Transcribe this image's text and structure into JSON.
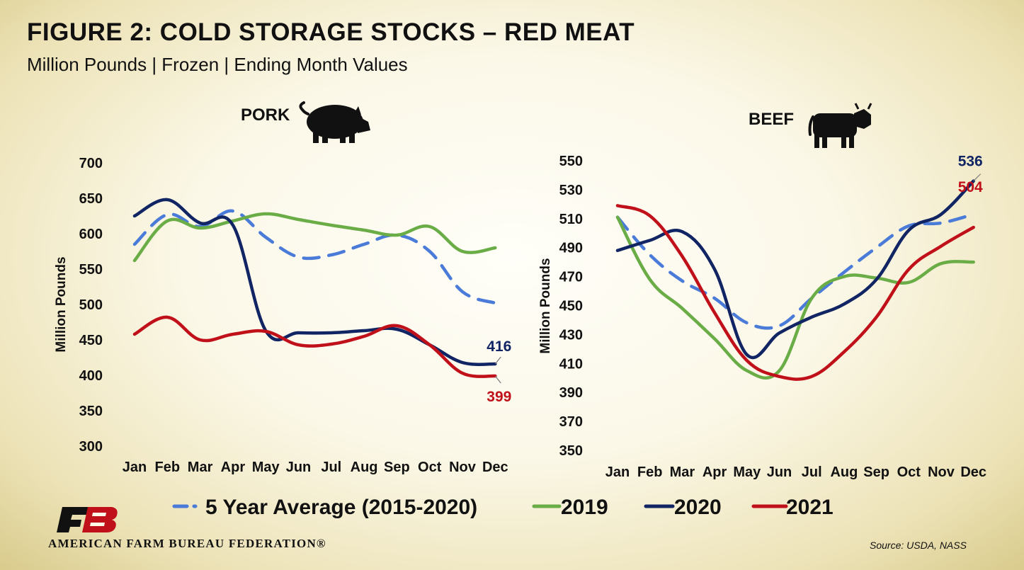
{
  "title": "FIGURE 2: COLD STORAGE STOCKS – RED MEAT",
  "subtitle": "Million Pounds | Frozen | Ending Month Values",
  "source": "Source: USDA, NASS",
  "organization": "AMERICAN FARM BUREAU FEDERATION®",
  "colors": {
    "avg": "#4a7bd8",
    "y2019": "#6aac46",
    "y2020": "#112463",
    "y2021": "#c0101a"
  },
  "legend": [
    {
      "label": "5 Year Average (2015-2020)",
      "key": "avg",
      "dashed": true
    },
    {
      "label": "2019",
      "key": "y2019",
      "dashed": false
    },
    {
      "label": "2020",
      "key": "y2020",
      "dashed": false
    },
    {
      "label": "2021",
      "key": "y2021",
      "dashed": false
    }
  ],
  "chart_data": [
    {
      "type": "line",
      "title": "PORK",
      "icon": "pig-icon",
      "ylabel": "Million Pounds",
      "ylim": [
        300,
        700
      ],
      "yticks": [
        300,
        350,
        400,
        450,
        500,
        550,
        600,
        650,
        700
      ],
      "categories": [
        "Jan",
        "Feb",
        "Mar",
        "Apr",
        "May",
        "Jun",
        "Jul",
        "Aug",
        "Sep",
        "Oct",
        "Nov",
        "Dec"
      ],
      "series": [
        {
          "name": "5 Year Average (2015-2020)",
          "key": "avg",
          "values": [
            585,
            627,
            610,
            632,
            595,
            567,
            570,
            585,
            598,
            575,
            518,
            502
          ]
        },
        {
          "name": "2019",
          "key": "y2019",
          "values": [
            562,
            618,
            608,
            618,
            628,
            620,
            612,
            605,
            598,
            610,
            575,
            580
          ]
        },
        {
          "name": "2020",
          "key": "y2020",
          "values": [
            625,
            648,
            615,
            612,
            463,
            460,
            460,
            463,
            465,
            443,
            418,
            416
          ]
        },
        {
          "name": "2021",
          "key": "y2021",
          "values": [
            458,
            482,
            450,
            458,
            462,
            443,
            444,
            455,
            470,
            443,
            403,
            399
          ]
        }
      ],
      "end_labels": [
        {
          "key": "y2020",
          "text": "416"
        },
        {
          "key": "y2021",
          "text": "399"
        }
      ]
    },
    {
      "type": "line",
      "title": "BEEF",
      "icon": "cow-icon",
      "ylabel": "Million Pounds",
      "ylim": [
        350,
        550
      ],
      "yticks": [
        350,
        370,
        390,
        410,
        430,
        450,
        470,
        490,
        510,
        530,
        550
      ],
      "categories": [
        "Jan",
        "Feb",
        "Mar",
        "Apr",
        "May",
        "Jun",
        "Jul",
        "Aug",
        "Sep",
        "Oct",
        "Nov",
        "Dec"
      ],
      "series": [
        {
          "name": "5 Year Average (2015-2020)",
          "key": "avg",
          "values": [
            511,
            485,
            467,
            455,
            438,
            436,
            455,
            473,
            490,
            505,
            507,
            513
          ]
        },
        {
          "name": "2019",
          "key": "y2019",
          "values": [
            511,
            468,
            448,
            427,
            405,
            405,
            455,
            470,
            469,
            466,
            479,
            480
          ]
        },
        {
          "name": "2020",
          "key": "y2020",
          "values": [
            488,
            495,
            501,
            475,
            416,
            431,
            442,
            451,
            468,
            502,
            513,
            536
          ]
        },
        {
          "name": "2021",
          "key": "y2021",
          "values": [
            519,
            512,
            484,
            445,
            412,
            401,
            401,
            418,
            442,
            475,
            491,
            504
          ]
        }
      ],
      "end_labels": [
        {
          "key": "y2020",
          "text": "536"
        },
        {
          "key": "y2021",
          "text": "504"
        }
      ]
    }
  ]
}
